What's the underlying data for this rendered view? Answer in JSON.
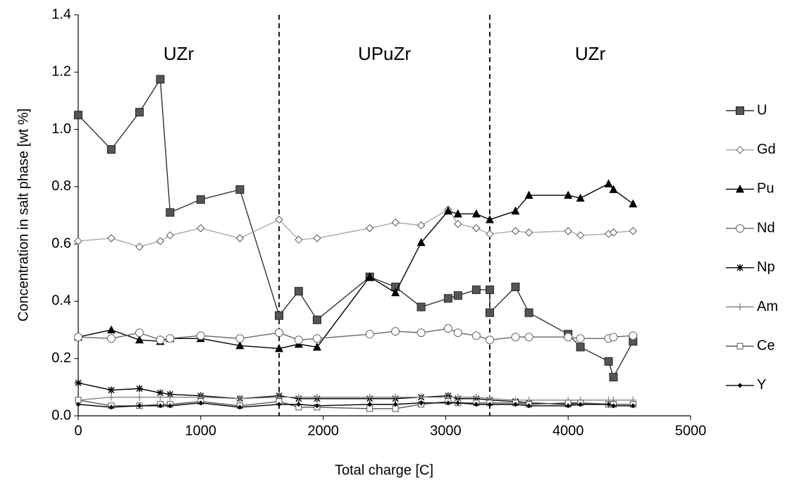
{
  "chart_data": {
    "type": "line",
    "xlabel": "Total charge [C]",
    "ylabel": "Concentration in salt phase [wt %]",
    "xlim": [
      0,
      5000
    ],
    "xticks": [
      0,
      1000,
      2000,
      3000,
      4000,
      5000
    ],
    "ylim": [
      0,
      1.4
    ],
    "yticks": [
      {
        "value": 0,
        "label": "0.0"
      },
      {
        "value": 0.2,
        "label": "0.2"
      },
      {
        "value": 0.4,
        "label": "0.4"
      },
      {
        "value": 0.6,
        "label": "0.6"
      },
      {
        "value": 0.8,
        "label": "0.8"
      },
      {
        "value": 1,
        "label": "1.0"
      },
      {
        "value": 1.2,
        "label": "1.2"
      },
      {
        "value": 1.4,
        "label": "1.4"
      }
    ],
    "dividers": [
      1640,
      3360
    ],
    "regions": [
      "UZr",
      "UPuZr",
      "UZr"
    ],
    "legend": "right",
    "x": [
      0,
      270,
      500,
      670,
      750,
      1000,
      1320,
      1640,
      1800,
      1950,
      2380,
      2590,
      2800,
      3020,
      3100,
      3250,
      3360,
      3570,
      3680,
      4000,
      4100,
      4330,
      4370,
      4530
    ],
    "series": [
      {
        "name": "U",
        "color": "#333333",
        "marker": "square-filled",
        "x": [
          0,
          270,
          500,
          670,
          750,
          1000,
          1320,
          1640,
          1800,
          1950,
          2380,
          2590,
          2800,
          3020,
          3100,
          3250,
          3360,
          3360,
          3570,
          3680,
          4000,
          4100,
          4330,
          4370,
          4530
        ],
        "values": [
          1.05,
          0.93,
          1.06,
          1.175,
          0.71,
          0.755,
          0.79,
          0.35,
          0.435,
          0.335,
          0.485,
          0.45,
          0.38,
          0.41,
          0.42,
          0.44,
          0.44,
          0.36,
          0.45,
          0.36,
          0.285,
          0.24,
          0.19,
          0.135,
          0.26
        ]
      },
      {
        "name": "Gd",
        "color": "#aaaaaa",
        "marker": "diamond-open",
        "values": [
          0.61,
          0.62,
          0.59,
          0.61,
          0.63,
          0.655,
          0.62,
          0.685,
          0.615,
          0.62,
          0.655,
          0.675,
          0.665,
          0.72,
          0.67,
          0.655,
          0.635,
          0.645,
          0.64,
          0.645,
          0.63,
          0.635,
          0.64,
          0.645
        ]
      },
      {
        "name": "Pu",
        "color": "#000000",
        "marker": "triangle-filled",
        "values": [
          0.275,
          0.3,
          0.265,
          0.26,
          0.27,
          0.27,
          0.245,
          0.235,
          0.25,
          0.24,
          0.485,
          0.43,
          0.605,
          0.715,
          0.705,
          0.705,
          0.685,
          0.715,
          0.77,
          0.77,
          0.76,
          0.81,
          0.79,
          0.74
        ]
      },
      {
        "name": "Nd",
        "color": "#666666",
        "marker": "circle-open",
        "values": [
          0.275,
          0.27,
          0.29,
          0.265,
          0.27,
          0.28,
          0.27,
          0.29,
          0.265,
          0.27,
          0.285,
          0.295,
          0.29,
          0.305,
          0.29,
          0.28,
          0.265,
          0.275,
          0.275,
          0.275,
          0.27,
          0.27,
          0.275,
          0.28
        ]
      },
      {
        "name": "Np",
        "color": "#000000",
        "marker": "star",
        "values": [
          0.115,
          0.09,
          0.095,
          0.08,
          0.075,
          0.07,
          0.06,
          0.07,
          0.06,
          0.06,
          0.06,
          0.06,
          0.065,
          0.07,
          0.06,
          0.06,
          0.055,
          0.05,
          0.045,
          0.04,
          0.045,
          0.04,
          0.04,
          0.04
        ]
      },
      {
        "name": "Am",
        "color": "#888888",
        "marker": "plus",
        "values": [
          0.055,
          0.065,
          0.065,
          0.065,
          0.065,
          0.065,
          0.06,
          0.065,
          0.065,
          0.065,
          0.065,
          0.065,
          0.065,
          0.065,
          0.065,
          0.065,
          0.06,
          0.055,
          0.055,
          0.055,
          0.055,
          0.055,
          0.055,
          0.055
        ]
      },
      {
        "name": "Ce",
        "color": "#555555",
        "marker": "square-open",
        "values": [
          0.055,
          0.035,
          0.035,
          0.04,
          0.04,
          0.05,
          0.035,
          0.05,
          0.03,
          0.03,
          0.025,
          0.025,
          0.04,
          0.05,
          0.045,
          0.045,
          0.045,
          0.045,
          0.04,
          0.045,
          0.045,
          0.04,
          0.04,
          0.04
        ]
      },
      {
        "name": "Y",
        "color": "#000000",
        "marker": "diamond-small",
        "values": [
          0.04,
          0.03,
          0.035,
          0.035,
          0.035,
          0.045,
          0.03,
          0.04,
          0.04,
          0.035,
          0.04,
          0.04,
          0.045,
          0.045,
          0.045,
          0.04,
          0.04,
          0.04,
          0.035,
          0.035,
          0.04,
          0.04,
          0.035,
          0.035
        ]
      }
    ]
  }
}
